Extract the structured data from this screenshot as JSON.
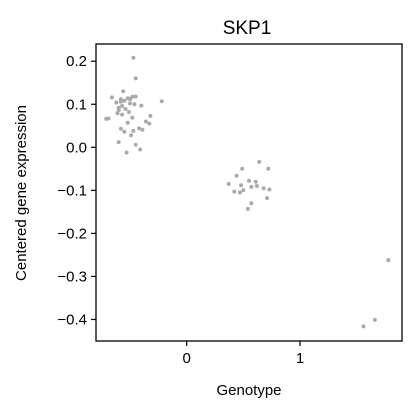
{
  "chart_data": {
    "type": "scatter",
    "title": "SKP1",
    "xlabel": "Genotype",
    "ylabel": "Centered gene expression",
    "xlim": [
      -0.8,
      1.9
    ],
    "ylim": [
      -0.45,
      0.24
    ],
    "xticks": [
      0,
      1
    ],
    "xtick_labels": [
      "0",
      "1"
    ],
    "yticks": [
      0.2,
      0.1,
      0.0,
      -0.1,
      -0.2,
      -0.3,
      -0.4
    ],
    "ytick_labels": [
      "0.2",
      "0.1",
      "0.0",
      "−0.1",
      "−0.2",
      "−0.3",
      "−0.4"
    ],
    "grid": false,
    "legend": "none",
    "point_color": "#aaaaaa",
    "points": [
      {
        "x": -0.47,
        "y": 0.208
      },
      {
        "x": -0.45,
        "y": 0.16
      },
      {
        "x": -0.56,
        "y": 0.13
      },
      {
        "x": -0.45,
        "y": 0.118
      },
      {
        "x": -0.48,
        "y": 0.117
      },
      {
        "x": -0.66,
        "y": 0.116
      },
      {
        "x": -0.52,
        "y": 0.114
      },
      {
        "x": -0.58,
        "y": 0.112
      },
      {
        "x": -0.5,
        "y": 0.112
      },
      {
        "x": -0.55,
        "y": 0.108
      },
      {
        "x": -0.22,
        "y": 0.107
      },
      {
        "x": -0.58,
        "y": 0.106
      },
      {
        "x": -0.62,
        "y": 0.104
      },
      {
        "x": -0.5,
        "y": 0.102
      },
      {
        "x": -0.46,
        "y": 0.1
      },
      {
        "x": -0.4,
        "y": 0.097
      },
      {
        "x": -0.57,
        "y": 0.096
      },
      {
        "x": -0.6,
        "y": 0.092
      },
      {
        "x": -0.54,
        "y": 0.089
      },
      {
        "x": -0.6,
        "y": 0.086
      },
      {
        "x": -0.51,
        "y": 0.082
      },
      {
        "x": -0.61,
        "y": 0.079
      },
      {
        "x": -0.57,
        "y": 0.076
      },
      {
        "x": -0.32,
        "y": 0.073
      },
      {
        "x": -0.48,
        "y": 0.069
      },
      {
        "x": -0.69,
        "y": 0.067
      },
      {
        "x": -0.71,
        "y": 0.066
      },
      {
        "x": -0.36,
        "y": 0.06
      },
      {
        "x": -0.52,
        "y": 0.057
      },
      {
        "x": -0.33,
        "y": 0.055
      },
      {
        "x": -0.42,
        "y": 0.044
      },
      {
        "x": -0.58,
        "y": 0.043
      },
      {
        "x": -0.39,
        "y": 0.041
      },
      {
        "x": -0.47,
        "y": 0.038
      },
      {
        "x": -0.55,
        "y": 0.036
      },
      {
        "x": -0.49,
        "y": 0.028
      },
      {
        "x": -0.6,
        "y": 0.012
      },
      {
        "x": -0.45,
        "y": 0.006
      },
      {
        "x": -0.41,
        "y": -0.005
      },
      {
        "x": -0.53,
        "y": -0.012
      },
      {
        "x": 0.64,
        "y": -0.034
      },
      {
        "x": 0.49,
        "y": -0.05
      },
      {
        "x": 0.72,
        "y": -0.05
      },
      {
        "x": 0.44,
        "y": -0.066
      },
      {
        "x": 0.55,
        "y": -0.078
      },
      {
        "x": 0.61,
        "y": -0.08
      },
      {
        "x": 0.37,
        "y": -0.085
      },
      {
        "x": 0.48,
        "y": -0.088
      },
      {
        "x": 0.62,
        "y": -0.09
      },
      {
        "x": 0.57,
        "y": -0.092
      },
      {
        "x": 0.68,
        "y": -0.095
      },
      {
        "x": 0.73,
        "y": -0.098
      },
      {
        "x": 0.5,
        "y": -0.1
      },
      {
        "x": 0.42,
        "y": -0.103
      },
      {
        "x": 0.47,
        "y": -0.105
      },
      {
        "x": 0.71,
        "y": -0.118
      },
      {
        "x": 0.57,
        "y": -0.13
      },
      {
        "x": 0.54,
        "y": -0.143
      },
      {
        "x": 1.78,
        "y": -0.262
      },
      {
        "x": 1.66,
        "y": -0.401
      },
      {
        "x": 1.56,
        "y": -0.416
      }
    ]
  }
}
